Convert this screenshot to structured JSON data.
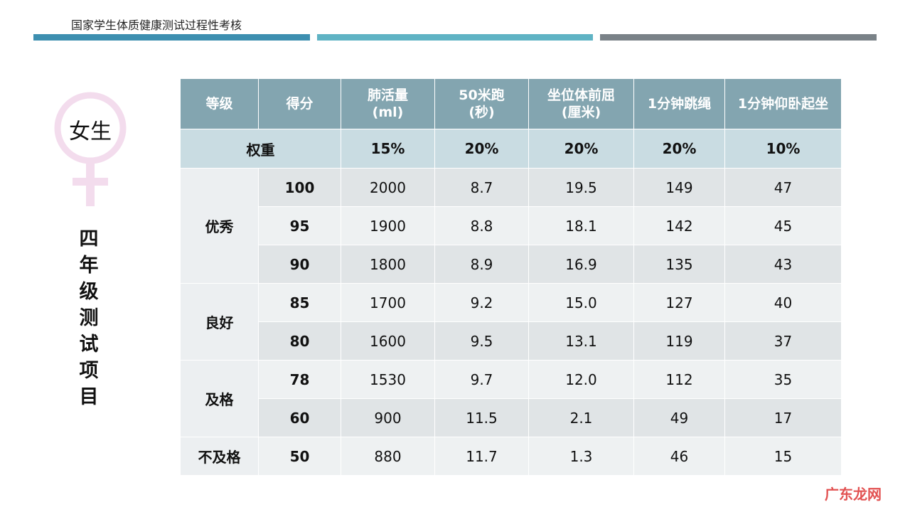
{
  "header": {
    "title": "国家学生体质健康测试过程性考核"
  },
  "colors": {
    "bar1": "#3d8fb0",
    "bar2": "#5fb3c4",
    "bar3": "#7a8288",
    "table_header": "#83a5b0",
    "symbol": "#f3dced"
  },
  "side": {
    "symbol_icon": "female-symbol-icon",
    "symbol_label": "女生",
    "title_chars": [
      "四",
      "年",
      "级",
      "测",
      "试",
      "项",
      "目"
    ]
  },
  "table": {
    "headers": [
      "等级",
      "得分",
      "肺活量\n(ml)",
      "50米跑\n(秒)",
      "坐位体前屈\n(厘米)",
      "1分钟跳绳",
      "1分钟仰卧起坐"
    ],
    "weight": {
      "label": "权重",
      "values": [
        "15%",
        "20%",
        "20%",
        "20%",
        "10%"
      ]
    },
    "groups": [
      {
        "grade": "优秀",
        "rows": [
          {
            "score": "100",
            "values": [
              "2000",
              "8.7",
              "19.5",
              "149",
              "47"
            ]
          },
          {
            "score": "95",
            "values": [
              "1900",
              "8.8",
              "18.1",
              "142",
              "45"
            ]
          },
          {
            "score": "90",
            "values": [
              "1800",
              "8.9",
              "16.9",
              "135",
              "43"
            ]
          }
        ]
      },
      {
        "grade": "良好",
        "rows": [
          {
            "score": "85",
            "values": [
              "1700",
              "9.2",
              "15.0",
              "127",
              "40"
            ]
          },
          {
            "score": "80",
            "values": [
              "1600",
              "9.5",
              "13.1",
              "119",
              "37"
            ]
          }
        ]
      },
      {
        "grade": "及格",
        "rows": [
          {
            "score": "78",
            "values": [
              "1530",
              "9.7",
              "12.0",
              "112",
              "35"
            ]
          },
          {
            "score": "60",
            "values": [
              "900",
              "11.5",
              "2.1",
              "49",
              "17"
            ]
          }
        ]
      },
      {
        "grade": "不及格",
        "rows": [
          {
            "score": "50",
            "values": [
              "880",
              "11.7",
              "1.3",
              "46",
              "15"
            ]
          }
        ]
      }
    ]
  },
  "watermark": "广东龙网"
}
